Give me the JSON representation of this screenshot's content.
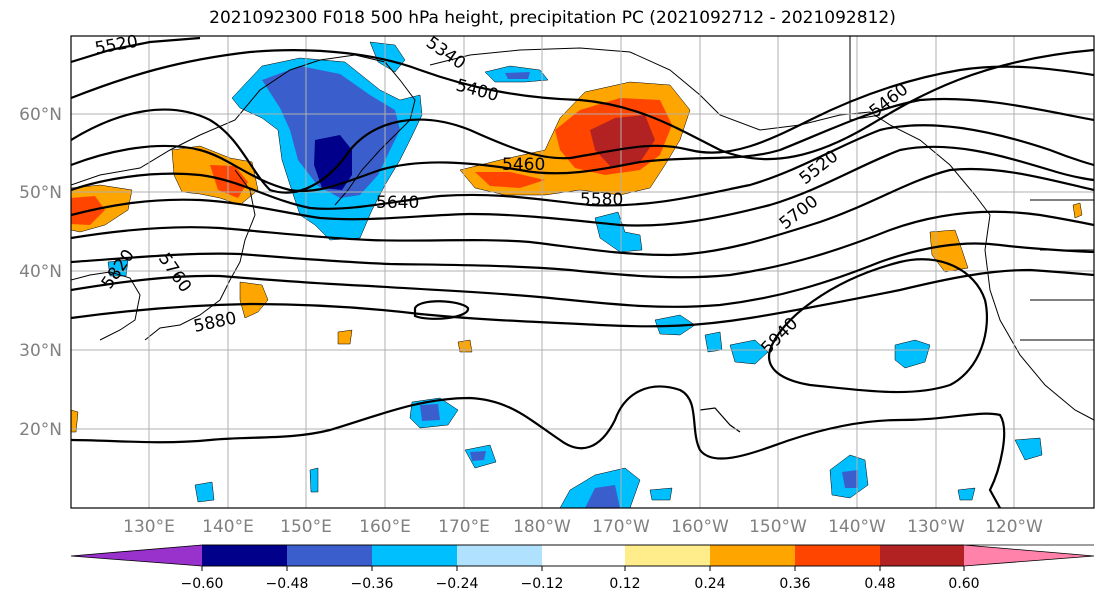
{
  "title": "2021092300 F018 500 hPa height, precipitation PC (2021092712 - 2021092812)",
  "lat_labels": [
    "60°N",
    "50°N",
    "40°N",
    "30°N",
    "20°N"
  ],
  "lon_labels": [
    "130°E",
    "140°E",
    "150°E",
    "160°E",
    "170°E",
    "180°W",
    "170°W",
    "160°W",
    "150°W",
    "140°W",
    "130°W",
    "120°W"
  ],
  "contour_labels": [
    "5520",
    "5340",
    "5400",
    "5460",
    "5460",
    "5580",
    "5640",
    "5520",
    "5700",
    "5760",
    "5820",
    "5880",
    "5940"
  ],
  "colorbar": {
    "colors": [
      "#9932cc",
      "#00008b",
      "#3a5fcd",
      "#00bfff",
      "#b0e2ff",
      "#ffffff",
      "#ffec8b",
      "#ffa500",
      "#ff4500",
      "#b22222",
      "#ff82ab"
    ],
    "tick_labels": [
      "−0.60",
      "−0.48",
      "−0.36",
      "−0.24",
      "−0.12",
      "0.12",
      "0.24",
      "0.36",
      "0.48",
      "0.60"
    ]
  },
  "colors": {
    "axis_label": "#808080",
    "grid": "#b0b0b0",
    "contour": "#000000"
  }
}
